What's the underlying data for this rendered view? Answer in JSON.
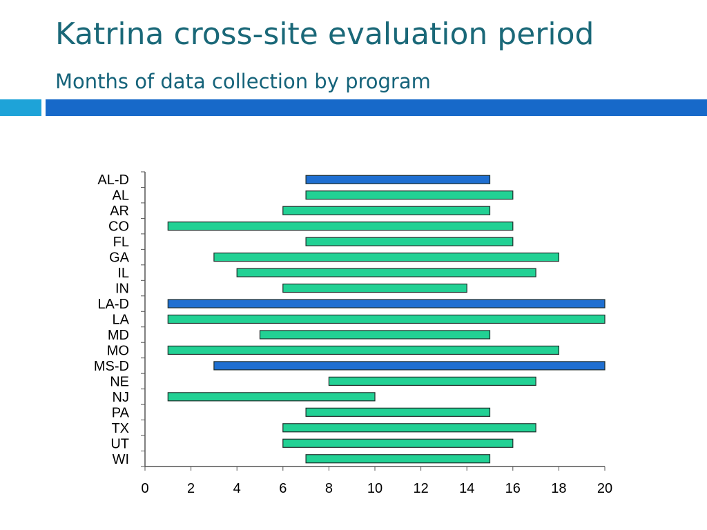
{
  "slide": {
    "title": "Katrina cross-site evaluation period",
    "subtitle": "Months of data collection by program"
  },
  "colors": {
    "title": "#1a6878",
    "subtitle": "#15637a",
    "band_left": "#1ea3d8",
    "band_right": "#1769c9",
    "bar_green": "#22d194",
    "bar_blue": "#1f6fd1",
    "bar_outline": "#1e2b28",
    "axis": "#555555"
  },
  "chart_data": {
    "type": "bar",
    "orientation": "horizontal",
    "style": "floating-range",
    "title": "",
    "xlabel": "",
    "ylabel": "",
    "xlim": [
      0,
      20
    ],
    "xticks": [
      "0",
      "2",
      "4",
      "6",
      "8",
      "10",
      "12",
      "14",
      "16",
      "18",
      "20"
    ],
    "grid": false,
    "legend": "none",
    "categories": [
      "AL-D",
      "AL",
      "AR",
      "CO",
      "FL",
      "GA",
      "IL",
      "IN",
      "LA-D",
      "LA",
      "MD",
      "MO",
      "MS-D",
      "NE",
      "NJ",
      "PA",
      "TX",
      "UT",
      "WI"
    ],
    "start": [
      7,
      7,
      6,
      1,
      7,
      3,
      4,
      6,
      1,
      1,
      5,
      1,
      3,
      8,
      1,
      7,
      6,
      6,
      7
    ],
    "end": [
      15,
      16,
      15,
      16,
      16,
      18,
      17,
      14,
      20,
      20,
      15,
      18,
      20,
      17,
      10,
      15,
      17,
      16,
      15
    ],
    "highlighted": [
      "AL-D",
      "LA-D",
      "MS-D"
    ]
  }
}
